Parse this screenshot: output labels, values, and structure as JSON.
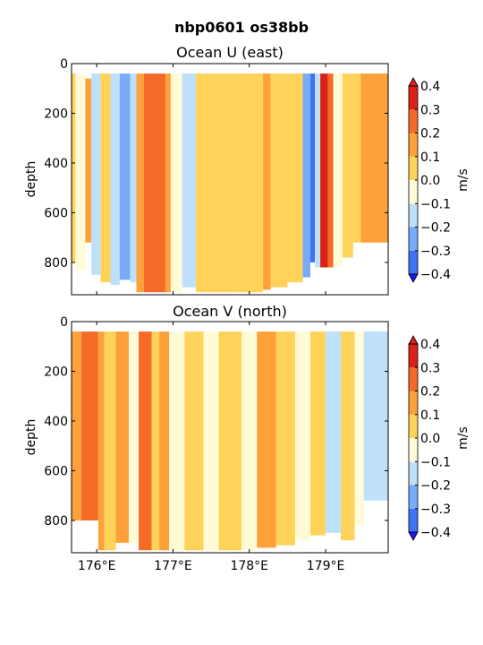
{
  "figure_title": "nbp0601 os38bb",
  "chart_data": [
    {
      "type": "heatmap",
      "title": "Ocean U (east)",
      "xlabel": "",
      "ylabel": "depth",
      "xlim": [
        175.67,
        179.82
      ],
      "ylim": [
        930,
        0
      ],
      "y_ticks": [
        0,
        200,
        400,
        600,
        800
      ],
      "y_tick_labels": [
        "0",
        "200",
        "400",
        "600",
        "800"
      ],
      "x_ticks": [
        176,
        177,
        178,
        179
      ],
      "x_tick_labels": [
        "",
        "",
        "",
        ""
      ],
      "colorbar": {
        "label": "m/s",
        "levels": [
          -0.4,
          -0.3,
          -0.2,
          -0.1,
          0.0,
          0.1,
          0.2,
          0.3,
          0.4
        ],
        "tick_labels": [
          "−0.4",
          "−0.3",
          "−0.2",
          "−0.1",
          "0.0",
          "0.1",
          "0.2",
          "0.3",
          "0.4"
        ],
        "colors": [
          "#1a1aff",
          "#3f72f5",
          "#78acf8",
          "#bee0fb",
          "#fffbd6",
          "#ffd25a",
          "#fda13a",
          "#f56a27",
          "#d9211a"
        ]
      },
      "columns": [
        {
          "x0": 175.67,
          "x1": 175.72,
          "v": 0.06,
          "top": 40,
          "bot": 800
        },
        {
          "x0": 175.72,
          "x1": 175.85,
          "v": -0.03,
          "top": 40,
          "bot": 830
        },
        {
          "x0": 175.85,
          "x1": 175.93,
          "v": 0.12,
          "top": 60,
          "bot": 720
        },
        {
          "x0": 175.93,
          "x1": 176.05,
          "v": -0.13,
          "top": 40,
          "bot": 850
        },
        {
          "x0": 176.05,
          "x1": 176.18,
          "v": 0.04,
          "top": 40,
          "bot": 880
        },
        {
          "x0": 176.18,
          "x1": 176.3,
          "v": -0.16,
          "top": 40,
          "bot": 890
        },
        {
          "x0": 176.3,
          "x1": 176.44,
          "v": -0.24,
          "top": 40,
          "bot": 870
        },
        {
          "x0": 176.44,
          "x1": 176.52,
          "v": -0.15,
          "top": 40,
          "bot": 880
        },
        {
          "x0": 176.52,
          "x1": 176.62,
          "v": 0.15,
          "top": 40,
          "bot": 920
        },
        {
          "x0": 176.62,
          "x1": 176.9,
          "v": 0.25,
          "top": 40,
          "bot": 920
        },
        {
          "x0": 176.9,
          "x1": 176.97,
          "v": 0.13,
          "top": 40,
          "bot": 920
        },
        {
          "x0": 176.97,
          "x1": 177.12,
          "v": -0.04,
          "top": 40,
          "bot": 920
        },
        {
          "x0": 177.12,
          "x1": 177.3,
          "v": -0.13,
          "top": 40,
          "bot": 900
        },
        {
          "x0": 177.3,
          "x1": 177.5,
          "v": 0.07,
          "top": 40,
          "bot": 920
        },
        {
          "x0": 177.5,
          "x1": 177.8,
          "v": 0.04,
          "top": 40,
          "bot": 920
        },
        {
          "x0": 177.8,
          "x1": 177.98,
          "v": 0.06,
          "top": 40,
          "bot": 920
        },
        {
          "x0": 177.98,
          "x1": 178.18,
          "v": 0.08,
          "top": 40,
          "bot": 920
        },
        {
          "x0": 178.18,
          "x1": 178.28,
          "v": 0.16,
          "top": 40,
          "bot": 910
        },
        {
          "x0": 178.28,
          "x1": 178.5,
          "v": 0.06,
          "top": 40,
          "bot": 900
        },
        {
          "x0": 178.5,
          "x1": 178.7,
          "v": 0.09,
          "top": 40,
          "bot": 880
        },
        {
          "x0": 178.7,
          "x1": 178.8,
          "v": -0.22,
          "top": 40,
          "bot": 860
        },
        {
          "x0": 178.8,
          "x1": 178.86,
          "v": -0.34,
          "top": 40,
          "bot": 800
        },
        {
          "x0": 178.86,
          "x1": 178.93,
          "v": -0.12,
          "top": 40,
          "bot": 820
        },
        {
          "x0": 178.93,
          "x1": 179.03,
          "v": 0.33,
          "top": 40,
          "bot": 820
        },
        {
          "x0": 179.03,
          "x1": 179.1,
          "v": 0.22,
          "top": 40,
          "bot": 820
        },
        {
          "x0": 179.1,
          "x1": 179.22,
          "v": -0.05,
          "top": 40,
          "bot": 820
        },
        {
          "x0": 179.22,
          "x1": 179.36,
          "v": 0.08,
          "top": 40,
          "bot": 780
        },
        {
          "x0": 179.36,
          "x1": 179.46,
          "v": 0.05,
          "top": 40,
          "bot": 720
        },
        {
          "x0": 179.46,
          "x1": 179.82,
          "v": 0.14,
          "top": 40,
          "bot": 720
        }
      ]
    },
    {
      "type": "heatmap",
      "title": "Ocean V (north)",
      "xlabel": "",
      "ylabel": "depth",
      "xlim": [
        175.67,
        179.82
      ],
      "ylim": [
        930,
        0
      ],
      "y_ticks": [
        0,
        200,
        400,
        600,
        800
      ],
      "y_tick_labels": [
        "0",
        "200",
        "400",
        "600",
        "800"
      ],
      "x_ticks": [
        176,
        177,
        178,
        179
      ],
      "x_tick_labels": [
        "176°E",
        "177°E",
        "178°E",
        "179°E"
      ],
      "colorbar": {
        "label": "m/s",
        "levels": [
          -0.4,
          -0.3,
          -0.2,
          -0.1,
          0.0,
          0.1,
          0.2,
          0.3,
          0.4
        ],
        "tick_labels": [
          "−0.4",
          "−0.3",
          "−0.2",
          "−0.1",
          "0.0",
          "0.1",
          "0.2",
          "0.3",
          "0.4"
        ],
        "colors": [
          "#1a1aff",
          "#3f72f5",
          "#78acf8",
          "#bee0fb",
          "#fffbd6",
          "#ffd25a",
          "#fda13a",
          "#f56a27",
          "#d9211a"
        ]
      },
      "columns": [
        {
          "x0": 175.67,
          "x1": 175.8,
          "v": 0.14,
          "top": 40,
          "bot": 800
        },
        {
          "x0": 175.8,
          "x1": 176.02,
          "v": 0.25,
          "top": 40,
          "bot": 800
        },
        {
          "x0": 176.02,
          "x1": 176.1,
          "v": 0.13,
          "top": 40,
          "bot": 920
        },
        {
          "x0": 176.1,
          "x1": 176.25,
          "v": 0.06,
          "top": 40,
          "bot": 920
        },
        {
          "x0": 176.25,
          "x1": 176.42,
          "v": 0.13,
          "top": 40,
          "bot": 890
        },
        {
          "x0": 176.42,
          "x1": 176.55,
          "v": -0.04,
          "top": 40,
          "bot": 890
        },
        {
          "x0": 176.55,
          "x1": 176.72,
          "v": 0.24,
          "top": 40,
          "bot": 920
        },
        {
          "x0": 176.72,
          "x1": 176.82,
          "v": 0.04,
          "top": 40,
          "bot": 920
        },
        {
          "x0": 176.82,
          "x1": 176.95,
          "v": 0.18,
          "top": 40,
          "bot": 920
        },
        {
          "x0": 176.95,
          "x1": 177.15,
          "v": -0.05,
          "top": 40,
          "bot": 920
        },
        {
          "x0": 177.15,
          "x1": 177.4,
          "v": 0.04,
          "top": 40,
          "bot": 920
        },
        {
          "x0": 177.4,
          "x1": 177.6,
          "v": -0.06,
          "top": 40,
          "bot": 920
        },
        {
          "x0": 177.6,
          "x1": 177.9,
          "v": 0.05,
          "top": 40,
          "bot": 920
        },
        {
          "x0": 177.9,
          "x1": 178.1,
          "v": -0.05,
          "top": 40,
          "bot": 920
        },
        {
          "x0": 178.1,
          "x1": 178.35,
          "v": 0.15,
          "top": 40,
          "bot": 910
        },
        {
          "x0": 178.35,
          "x1": 178.6,
          "v": 0.05,
          "top": 40,
          "bot": 900
        },
        {
          "x0": 178.6,
          "x1": 178.8,
          "v": -0.05,
          "top": 40,
          "bot": 880
        },
        {
          "x0": 178.8,
          "x1": 179.0,
          "v": 0.06,
          "top": 40,
          "bot": 860
        },
        {
          "x0": 179.0,
          "x1": 179.2,
          "v": -0.12,
          "top": 40,
          "bot": 850
        },
        {
          "x0": 179.2,
          "x1": 179.38,
          "v": 0.05,
          "top": 40,
          "bot": 880
        },
        {
          "x0": 179.38,
          "x1": 179.5,
          "v": -0.04,
          "top": 40,
          "bot": 820
        },
        {
          "x0": 179.5,
          "x1": 179.82,
          "v": -0.12,
          "top": 40,
          "bot": 720
        }
      ]
    }
  ]
}
